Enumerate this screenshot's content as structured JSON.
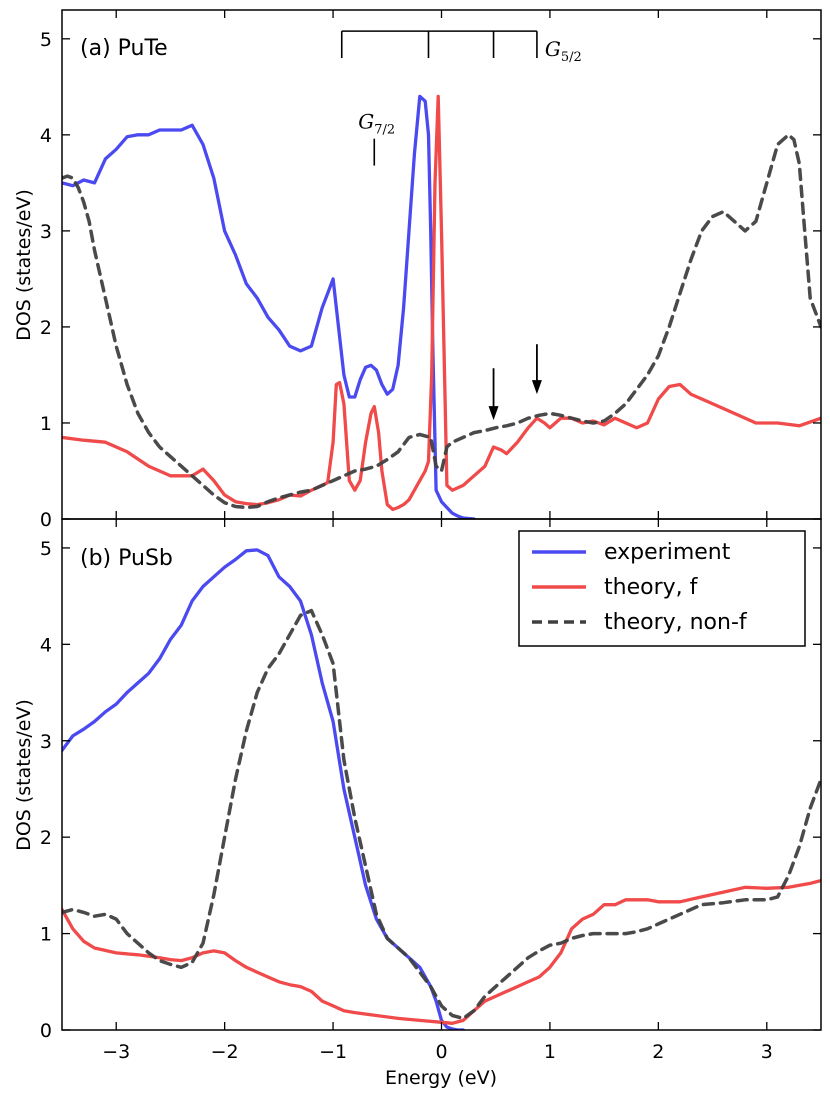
{
  "colors": {
    "experiment": "#4a4af0",
    "theory_f": "#f04a4a",
    "theory_nonf": "#404040",
    "axis": "#000000"
  },
  "chart_data": [
    {
      "type": "line",
      "title": "(a) PuTe",
      "xlabel": "",
      "ylabel": "DOS (states/eV)",
      "xlim": [
        -3.5,
        3.5
      ],
      "ylim": [
        0,
        5.3
      ],
      "yticks": [
        0,
        1,
        2,
        3,
        4,
        5
      ],
      "ytick_labels": [
        "0",
        "1",
        "2",
        "3",
        "4",
        "5"
      ],
      "xticks": [
        -3,
        -2,
        -1,
        0,
        1,
        2,
        3
      ],
      "annotations": {
        "g52_label": "G",
        "g52_sub": "5/2",
        "g52_ticks": [
          -0.92,
          -0.12,
          0.48,
          0.88
        ],
        "g52_y": [
          4.8,
          5.08
        ],
        "g72_label": "G",
        "g72_sub": "7/2",
        "g72_x": -0.62,
        "g72_y": [
          3.68,
          3.96
        ],
        "arrows": [
          {
            "x": 0.48,
            "y_from": 1.57,
            "y_to": 1.03
          },
          {
            "x": 0.88,
            "y_from": 1.82,
            "y_to": 1.3
          }
        ]
      },
      "series": [
        {
          "name": "experiment",
          "style": "solid",
          "x": [
            -3.5,
            -3.4,
            -3.3,
            -3.2,
            -3.1,
            -3.0,
            -2.9,
            -2.8,
            -2.7,
            -2.6,
            -2.5,
            -2.4,
            -2.3,
            -2.2,
            -2.1,
            -2.0,
            -1.9,
            -1.8,
            -1.7,
            -1.6,
            -1.5,
            -1.4,
            -1.3,
            -1.2,
            -1.1,
            -1.05,
            -1.0,
            -0.95,
            -0.9,
            -0.85,
            -0.8,
            -0.75,
            -0.7,
            -0.65,
            -0.6,
            -0.55,
            -0.5,
            -0.45,
            -0.4,
            -0.35,
            -0.3,
            -0.25,
            -0.2,
            -0.15,
            -0.12,
            -0.1,
            -0.08,
            -0.05,
            0.0,
            0.05,
            0.1,
            0.15,
            0.2,
            0.3
          ],
          "y": [
            3.5,
            3.47,
            3.53,
            3.5,
            3.75,
            3.85,
            3.98,
            4.0,
            4.0,
            4.05,
            4.05,
            4.05,
            4.1,
            3.9,
            3.55,
            3.0,
            2.75,
            2.45,
            2.3,
            2.1,
            1.97,
            1.8,
            1.75,
            1.8,
            2.2,
            2.35,
            2.5,
            2.0,
            1.5,
            1.27,
            1.27,
            1.45,
            1.58,
            1.6,
            1.55,
            1.4,
            1.3,
            1.35,
            1.6,
            2.2,
            3.0,
            3.8,
            4.4,
            4.35,
            4.0,
            3.0,
            1.8,
            0.3,
            0.18,
            0.12,
            0.06,
            0.03,
            0.01,
            0.0
          ]
        },
        {
          "name": "theory, f",
          "style": "solid",
          "x": [
            -3.5,
            -3.3,
            -3.1,
            -2.9,
            -2.7,
            -2.5,
            -2.3,
            -2.2,
            -2.1,
            -2.0,
            -1.9,
            -1.8,
            -1.7,
            -1.6,
            -1.5,
            -1.4,
            -1.3,
            -1.2,
            -1.1,
            -1.05,
            -1.0,
            -0.97,
            -0.94,
            -0.9,
            -0.85,
            -0.8,
            -0.75,
            -0.7,
            -0.65,
            -0.62,
            -0.58,
            -0.55,
            -0.5,
            -0.45,
            -0.4,
            -0.35,
            -0.3,
            -0.25,
            -0.2,
            -0.15,
            -0.12,
            -0.09,
            -0.06,
            -0.03,
            0.0,
            0.05,
            0.1,
            0.2,
            0.3,
            0.4,
            0.48,
            0.55,
            0.6,
            0.7,
            0.8,
            0.88,
            0.95,
            1.0,
            1.1,
            1.2,
            1.3,
            1.4,
            1.5,
            1.6,
            1.7,
            1.8,
            1.9,
            2.0,
            2.1,
            2.2,
            2.3,
            2.5,
            2.7,
            2.9,
            3.1,
            3.3,
            3.5
          ],
          "y": [
            0.85,
            0.82,
            0.8,
            0.7,
            0.55,
            0.45,
            0.45,
            0.52,
            0.4,
            0.25,
            0.18,
            0.16,
            0.15,
            0.17,
            0.2,
            0.25,
            0.24,
            0.3,
            0.35,
            0.38,
            0.8,
            1.4,
            1.42,
            1.2,
            0.4,
            0.3,
            0.4,
            0.8,
            1.1,
            1.17,
            0.9,
            0.5,
            0.15,
            0.1,
            0.12,
            0.15,
            0.2,
            0.3,
            0.4,
            0.5,
            0.6,
            1.5,
            3.5,
            4.4,
            3.0,
            0.35,
            0.3,
            0.35,
            0.45,
            0.55,
            0.75,
            0.72,
            0.68,
            0.8,
            0.95,
            1.05,
            1.0,
            0.95,
            1.05,
            1.05,
            1.0,
            1.02,
            0.98,
            1.05,
            1.0,
            0.95,
            1.0,
            1.25,
            1.38,
            1.4,
            1.3,
            1.2,
            1.1,
            1.0,
            1.0,
            0.97,
            1.05
          ]
        },
        {
          "name": "theory, non-f",
          "style": "dashed",
          "x": [
            -3.5,
            -3.45,
            -3.4,
            -3.35,
            -3.3,
            -3.25,
            -3.2,
            -3.1,
            -3.0,
            -2.9,
            -2.8,
            -2.7,
            -2.6,
            -2.5,
            -2.4,
            -2.3,
            -2.2,
            -2.1,
            -2.0,
            -1.9,
            -1.8,
            -1.7,
            -1.6,
            -1.5,
            -1.4,
            -1.3,
            -1.2,
            -1.1,
            -1.0,
            -0.9,
            -0.8,
            -0.7,
            -0.6,
            -0.5,
            -0.4,
            -0.3,
            -0.2,
            -0.1,
            -0.05,
            0.0,
            0.05,
            0.1,
            0.2,
            0.3,
            0.4,
            0.5,
            0.6,
            0.7,
            0.8,
            0.9,
            1.0,
            1.1,
            1.2,
            1.3,
            1.4,
            1.5,
            1.6,
            1.7,
            1.8,
            1.9,
            2.0,
            2.1,
            2.2,
            2.3,
            2.4,
            2.5,
            2.6,
            2.7,
            2.8,
            2.9,
            3.0,
            3.1,
            3.2,
            3.25,
            3.3,
            3.35,
            3.4,
            3.5
          ],
          "y": [
            3.55,
            3.57,
            3.55,
            3.45,
            3.3,
            3.1,
            2.8,
            2.3,
            1.8,
            1.4,
            1.1,
            0.9,
            0.75,
            0.65,
            0.55,
            0.45,
            0.35,
            0.25,
            0.17,
            0.13,
            0.12,
            0.13,
            0.18,
            0.22,
            0.25,
            0.28,
            0.3,
            0.35,
            0.4,
            0.45,
            0.5,
            0.52,
            0.55,
            0.62,
            0.7,
            0.85,
            0.88,
            0.85,
            0.55,
            0.5,
            0.75,
            0.8,
            0.85,
            0.9,
            0.92,
            0.95,
            0.97,
            1.0,
            1.05,
            1.08,
            1.1,
            1.08,
            1.05,
            1.02,
            1.0,
            1.02,
            1.1,
            1.2,
            1.35,
            1.5,
            1.7,
            2.0,
            2.35,
            2.7,
            3.0,
            3.15,
            3.2,
            3.1,
            3.0,
            3.1,
            3.5,
            3.9,
            4.0,
            3.95,
            3.7,
            3.0,
            2.3,
            2.0
          ]
        }
      ]
    },
    {
      "type": "line",
      "title": "(b) PuSb",
      "xlabel": "Energy (eV)",
      "ylabel": "DOS (states/eV)",
      "xlim": [
        -3.5,
        3.5
      ],
      "ylim": [
        0,
        5.3
      ],
      "yticks": [
        0,
        1,
        2,
        3,
        4,
        5
      ],
      "ytick_labels": [
        "0",
        "1",
        "2",
        "3",
        "4",
        "5"
      ],
      "xticks": [
        -3,
        -2,
        -1,
        0,
        1,
        2,
        3
      ],
      "xtick_labels": [
        "−3",
        "−2",
        "−1",
        "0",
        "1",
        "2",
        "3"
      ],
      "legend": {
        "position": "top-right",
        "entries": [
          "experiment",
          "theory, f",
          "theory, non-f"
        ]
      },
      "series": [
        {
          "name": "experiment",
          "style": "solid",
          "x": [
            -3.5,
            -3.4,
            -3.3,
            -3.2,
            -3.1,
            -3.0,
            -2.9,
            -2.8,
            -2.7,
            -2.6,
            -2.5,
            -2.4,
            -2.3,
            -2.2,
            -2.1,
            -2.0,
            -1.9,
            -1.8,
            -1.7,
            -1.6,
            -1.5,
            -1.4,
            -1.3,
            -1.2,
            -1.1,
            -1.0,
            -0.9,
            -0.8,
            -0.7,
            -0.6,
            -0.5,
            -0.4,
            -0.3,
            -0.2,
            -0.1,
            -0.05,
            0.0,
            0.05,
            0.1,
            0.15,
            0.2
          ],
          "y": [
            2.9,
            3.05,
            3.12,
            3.2,
            3.3,
            3.38,
            3.5,
            3.6,
            3.7,
            3.85,
            4.05,
            4.2,
            4.45,
            4.6,
            4.7,
            4.8,
            4.88,
            4.97,
            4.98,
            4.92,
            4.7,
            4.6,
            4.45,
            4.1,
            3.6,
            3.2,
            2.5,
            2.0,
            1.5,
            1.15,
            0.95,
            0.85,
            0.75,
            0.65,
            0.45,
            0.3,
            0.1,
            0.03,
            0.01,
            0.0,
            0.0
          ]
        },
        {
          "name": "theory, f",
          "style": "solid",
          "x": [
            -3.5,
            -3.4,
            -3.3,
            -3.2,
            -3.0,
            -2.8,
            -2.6,
            -2.5,
            -2.4,
            -2.3,
            -2.2,
            -2.1,
            -2.0,
            -1.9,
            -1.8,
            -1.7,
            -1.6,
            -1.5,
            -1.4,
            -1.3,
            -1.2,
            -1.1,
            -1.0,
            -0.9,
            -0.8,
            -0.6,
            -0.4,
            -0.2,
            0.0,
            0.1,
            0.2,
            0.3,
            0.4,
            0.5,
            0.6,
            0.7,
            0.8,
            0.9,
            1.0,
            1.1,
            1.2,
            1.3,
            1.4,
            1.5,
            1.6,
            1.7,
            1.8,
            1.9,
            2.0,
            2.2,
            2.4,
            2.6,
            2.8,
            3.0,
            3.2,
            3.4,
            3.5
          ],
          "y": [
            1.25,
            1.05,
            0.92,
            0.85,
            0.8,
            0.78,
            0.75,
            0.73,
            0.72,
            0.75,
            0.8,
            0.82,
            0.8,
            0.72,
            0.65,
            0.6,
            0.55,
            0.5,
            0.47,
            0.45,
            0.4,
            0.3,
            0.25,
            0.2,
            0.18,
            0.15,
            0.12,
            0.1,
            0.08,
            0.07,
            0.1,
            0.2,
            0.3,
            0.35,
            0.4,
            0.45,
            0.5,
            0.55,
            0.65,
            0.8,
            1.05,
            1.15,
            1.2,
            1.3,
            1.3,
            1.35,
            1.35,
            1.35,
            1.33,
            1.33,
            1.38,
            1.43,
            1.48,
            1.47,
            1.48,
            1.52,
            1.55
          ]
        },
        {
          "name": "theory, non-f",
          "style": "dashed",
          "x": [
            -3.5,
            -3.4,
            -3.3,
            -3.2,
            -3.1,
            -3.0,
            -2.9,
            -2.8,
            -2.7,
            -2.6,
            -2.5,
            -2.4,
            -2.3,
            -2.2,
            -2.1,
            -2.0,
            -1.9,
            -1.8,
            -1.7,
            -1.6,
            -1.5,
            -1.4,
            -1.3,
            -1.2,
            -1.1,
            -1.0,
            -0.9,
            -0.8,
            -0.7,
            -0.6,
            -0.5,
            -0.4,
            -0.3,
            -0.2,
            -0.1,
            0.0,
            0.1,
            0.2,
            0.3,
            0.4,
            0.5,
            0.6,
            0.7,
            0.8,
            0.9,
            1.0,
            1.1,
            1.2,
            1.3,
            1.4,
            1.5,
            1.6,
            1.7,
            1.8,
            1.9,
            2.0,
            2.2,
            2.4,
            2.6,
            2.8,
            3.0,
            3.1,
            3.2,
            3.3,
            3.4,
            3.5
          ],
          "y": [
            1.22,
            1.25,
            1.22,
            1.18,
            1.2,
            1.15,
            1.0,
            0.9,
            0.8,
            0.72,
            0.68,
            0.65,
            0.7,
            0.9,
            1.4,
            2.0,
            2.6,
            3.1,
            3.5,
            3.75,
            3.9,
            4.1,
            4.3,
            4.35,
            4.1,
            3.8,
            2.8,
            2.2,
            1.7,
            1.2,
            0.95,
            0.85,
            0.75,
            0.6,
            0.45,
            0.25,
            0.15,
            0.12,
            0.2,
            0.35,
            0.45,
            0.55,
            0.65,
            0.75,
            0.82,
            0.88,
            0.9,
            0.95,
            0.98,
            1.0,
            1.0,
            1.0,
            1.0,
            1.02,
            1.05,
            1.1,
            1.2,
            1.3,
            1.32,
            1.35,
            1.35,
            1.38,
            1.6,
            1.9,
            2.3,
            2.6
          ]
        }
      ]
    }
  ]
}
